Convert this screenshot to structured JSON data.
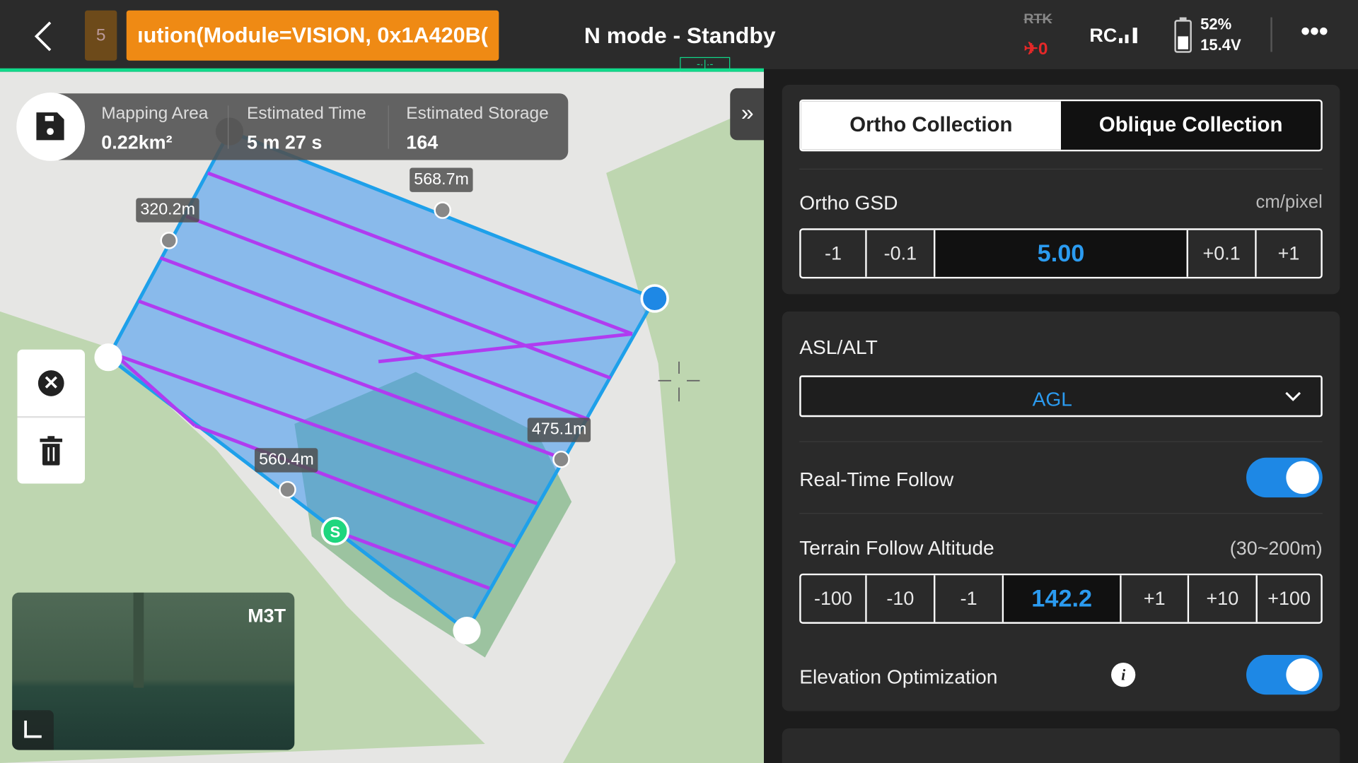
{
  "topbar": {
    "back_icon": "chevron-left-icon",
    "badge_count": "5",
    "alert_text": "ıution(Module=VISION, 0x1A420B(",
    "mode": "N mode - Standby",
    "rtk_label": "RTK",
    "rtk_count": "0",
    "rc_label": "RC",
    "battery_percent": "52%",
    "battery_voltage": "15.4V",
    "more_icon": "more-icon"
  },
  "colors": {
    "accent": "#1e88e5",
    "alert": "#ef8a14",
    "progress": "#10d98a",
    "route": "#b03cf0",
    "area_edge": "#1ea0ea"
  },
  "stats": {
    "area_label": "Mapping Area",
    "area_value": "0.22km²",
    "time_label": "Estimated Time",
    "time_value": "5 m 27 s",
    "storage_label": "Estimated Storage",
    "storage_value": "164"
  },
  "map": {
    "distances": [
      "568.7m",
      "320.2m",
      "475.1m",
      "560.4m"
    ],
    "start_label": "S",
    "camera_label": "M3T"
  },
  "panel": {
    "tabs": [
      "Ortho Collection",
      "Oblique Collection"
    ],
    "gsd": {
      "label": "Ortho GSD",
      "unit": "cm/pixel",
      "buttons": [
        "-1",
        "-0.1",
        "5.00",
        "+0.1",
        "+1"
      ]
    },
    "asl": {
      "label": "ASL/ALT",
      "value": "AGL"
    },
    "realtime": {
      "label": "Real-Time Follow",
      "on": true
    },
    "terrain": {
      "label": "Terrain Follow Altitude",
      "range": "(30~200m)",
      "buttons": [
        "-100",
        "-10",
        "-1",
        "142.2",
        "+1",
        "+10",
        "+100"
      ]
    },
    "elevation": {
      "label": "Elevation Optimization",
      "on": true
    }
  }
}
